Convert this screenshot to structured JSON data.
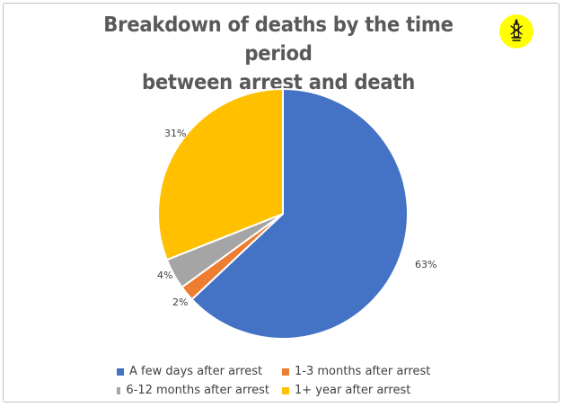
{
  "chart_data": {
    "type": "pie",
    "title": "Breakdown of deaths by the time period between arrest and death",
    "title_lines": [
      "Breakdown of deaths by the time period",
      "between arrest and death"
    ],
    "categories": [
      "A few days after arrest",
      "1-3 months after arrest",
      "6-12 months after arrest",
      "1+ year after arrest"
    ],
    "values": [
      63,
      2,
      4,
      31
    ],
    "labels": [
      "63%",
      "2%",
      "4%",
      "31%"
    ],
    "colors": [
      "#4472C4",
      "#ED7D31",
      "#A5A5A5",
      "#FFC000"
    ],
    "legend_position": "bottom",
    "unit": "%"
  },
  "logo": {
    "icon": "amnesty-candle-icon",
    "color": "#FFFF00"
  }
}
